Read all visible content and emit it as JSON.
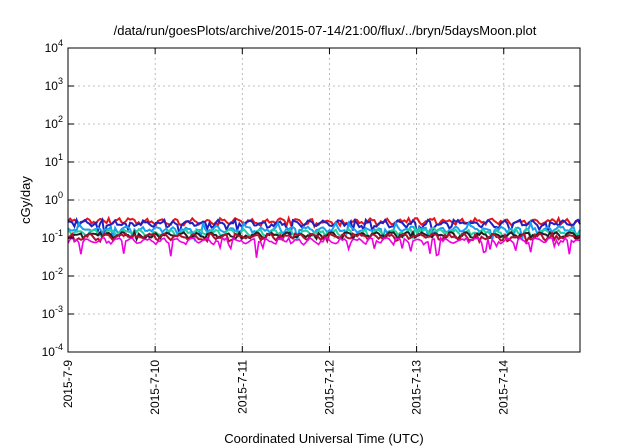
{
  "chart_data": {
    "type": "line",
    "title": "/data/run/goesPlots/archive/2015-07-14/21:00/flux/../bryn/5daysMoon.plot",
    "xlabel": "Coordinated Universal Time (UTC)",
    "ylabel": "cGy/day",
    "yscale": "log",
    "ylim": [
      0.0001,
      10000
    ],
    "y_ticks": [
      {
        "base": "10",
        "exp": "-4"
      },
      {
        "base": "10",
        "exp": "-3"
      },
      {
        "base": "10",
        "exp": "-2"
      },
      {
        "base": "10",
        "exp": "-1"
      },
      {
        "base": "10",
        "exp": "0"
      },
      {
        "base": "10",
        "exp": "1"
      },
      {
        "base": "10",
        "exp": "2"
      },
      {
        "base": "10",
        "exp": "3"
      },
      {
        "base": "10",
        "exp": "4"
      }
    ],
    "x_range": [
      "2015-07-09",
      "2015-07-14 21:00"
    ],
    "x_ticks": [
      "2015-7-9",
      "2015-7-10",
      "2015-7-11",
      "2015-7-12",
      "2015-7-13",
      "2015-7-14"
    ],
    "grid": true,
    "legend": "none",
    "series": [
      {
        "color": "#e8141c",
        "typical": 0.27,
        "min": 0.2,
        "max": 0.33
      },
      {
        "color": "#2020c0",
        "typical": 0.24,
        "min": 0.12,
        "max": 0.3
      },
      {
        "color": "#18a0f0",
        "typical": 0.17,
        "min": 0.09,
        "max": 0.25
      },
      {
        "color": "#20d0a0",
        "typical": 0.14,
        "min": 0.1,
        "max": 0.18
      },
      {
        "color": "#202020",
        "typical": 0.12,
        "min": 0.09,
        "max": 0.14
      },
      {
        "color": "#b01030",
        "typical": 0.11,
        "min": 0.08,
        "max": 0.13
      },
      {
        "color": "#f000e0",
        "typical": 0.085,
        "min": 0.025,
        "max": 0.1
      }
    ]
  }
}
